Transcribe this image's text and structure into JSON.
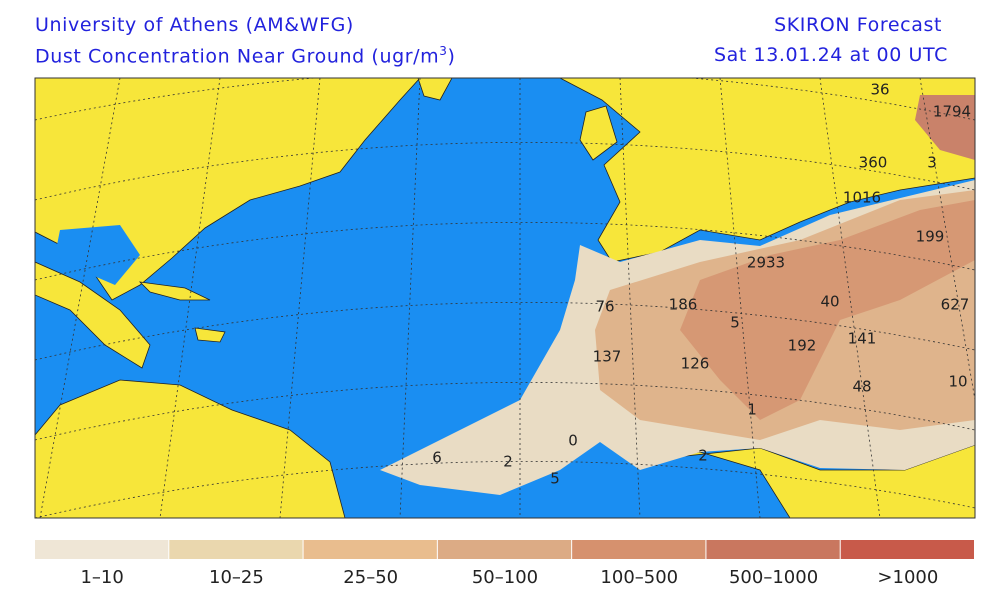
{
  "header": {
    "institution": "University of Athens (AM&WFG)",
    "title_text": "Dust Concentration Near Ground (ugr/m",
    "title_sup": "3",
    "title_end": ")",
    "model": "SKIRON Forecast",
    "valid_time": "Sat 13.01.24 at 00 UTC"
  },
  "map": {
    "labels": [
      36,
      1794,
      360,
      3,
      1016,
      199,
      2933,
      186,
      76,
      40,
      627,
      5,
      137,
      126,
      192,
      141,
      48,
      10,
      1,
      0,
      2,
      6,
      2,
      5
    ]
  },
  "legend": {
    "items": [
      {
        "label": "1–10",
        "color": "#efe6d6"
      },
      {
        "label": "10–25",
        "color": "#ead7ae"
      },
      {
        "label": "25–50",
        "color": "#e9bd8e"
      },
      {
        "label": "50–100",
        "color": "#dcab85"
      },
      {
        "label": "100–500",
        "color": "#d6916e"
      },
      {
        "label": "500–1000",
        "color": "#c9775f"
      },
      {
        "label": ">1000",
        "color": "#c85a4a"
      }
    ]
  }
}
